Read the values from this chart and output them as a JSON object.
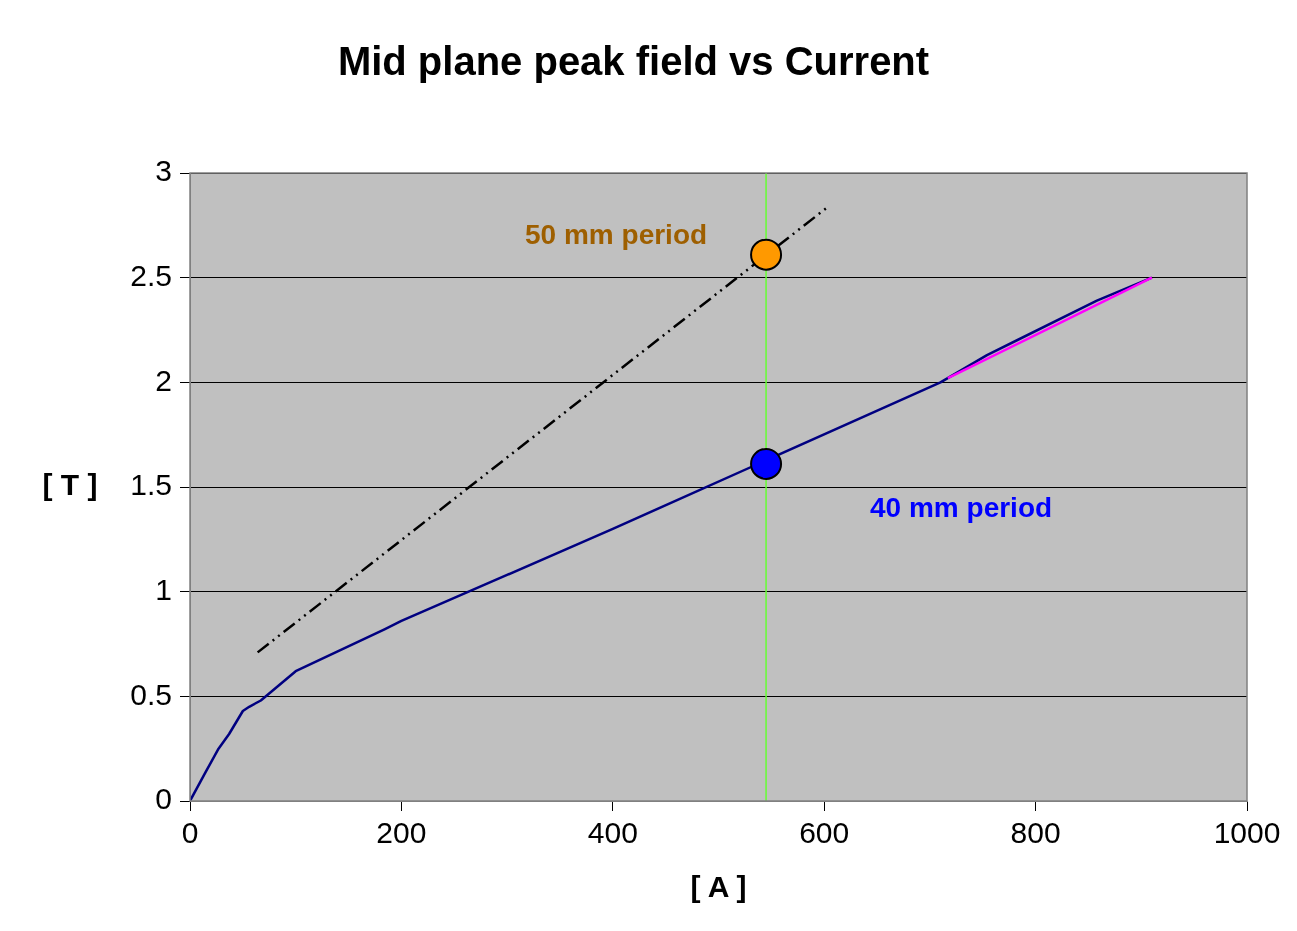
{
  "chart_data": {
    "type": "line",
    "title": "Mid plane peak field vs Current",
    "xlabel": "[ A ]",
    "ylabel": "[ T ]",
    "xlim": [
      0,
      1000
    ],
    "xticks": [
      0,
      200,
      400,
      600,
      800,
      1000
    ],
    "ylim": [
      0,
      3
    ],
    "yticks": [
      0,
      0.5,
      1,
      1.5,
      2,
      2.5,
      3
    ],
    "grid": "y",
    "legend": false,
    "marker": "none",
    "series": [
      {
        "color": "#000080",
        "x": [
          0,
          15,
          27,
          37,
          50,
          56,
          67,
          100,
          184,
          200,
          300,
          400,
          710,
          754,
          858,
          910
        ],
        "values": [
          0,
          0.14,
          0.25,
          0.32,
          0.43,
          0.45,
          0.48,
          0.62,
          0.82,
          0.86,
          1.08,
          1.3,
          2,
          2.13,
          2.39,
          2.5
        ]
      },
      {
        "color": "#ff00ff",
        "x": [
          717,
          910
        ],
        "values": [
          2.02,
          2.5
        ]
      },
      {
        "color": "#000000",
        "line_style": "dashed",
        "x": [
          64,
          604
        ],
        "values": [
          0.71,
          2.84
        ]
      },
      {
        "type": "scatter",
        "name": "50 mm period",
        "color": "#ff9900",
        "marker": "circle",
        "x": [
          545
        ],
        "values": [
          2.61
        ]
      },
      {
        "type": "scatter",
        "name": "40 mm period",
        "color": "#0000ff",
        "marker": "circle",
        "x": [
          545
        ],
        "values": [
          1.61
        ]
      }
    ],
    "ref_lines": [
      {
        "axis": "x",
        "value": 545,
        "color": "#66ff33"
      }
    ]
  }
}
